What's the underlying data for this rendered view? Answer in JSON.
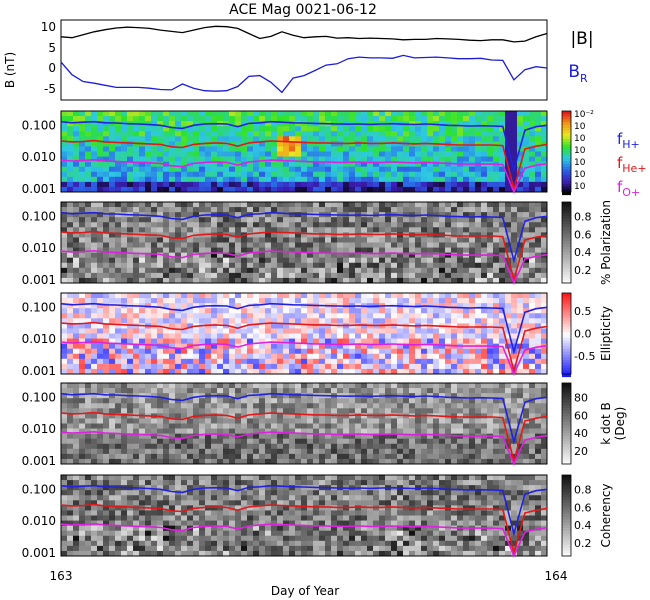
{
  "chart_data": [
    {
      "type": "line",
      "title": "ACE Mag 0021-06-12",
      "ylabel": "B (nT)",
      "ylim": [
        -8,
        11
      ],
      "yticks": [
        "10",
        "5",
        "0",
        "-5"
      ],
      "series": [
        {
          "name": "|B|",
          "color": "#000000",
          "values": [
            7.0,
            6.8,
            7.5,
            8.2,
            8.7,
            9.1,
            9.3,
            9.2,
            9.0,
            8.6,
            8.3,
            8.0,
            8.6,
            9.2,
            9.5,
            9.4,
            9.0,
            7.8,
            6.6,
            7.1,
            8.2,
            7.4,
            6.8,
            7.0,
            7.1,
            6.7,
            6.8,
            6.6,
            6.7,
            6.6,
            6.5,
            6.3,
            6.4,
            6.4,
            6.6,
            6.5,
            6.4,
            6.2,
            6.1,
            6.3,
            6.3,
            5.8,
            6.0,
            7.0,
            7.8
          ]
        },
        {
          "name": "B",
          "name_sub": "R",
          "color": "#1c1cd9",
          "values": [
            1.0,
            -2.0,
            -3.6,
            -4.0,
            -4.5,
            -5.0,
            -5.0,
            -5.0,
            -5.2,
            -5.5,
            -5.6,
            -4.2,
            -5.2,
            -5.8,
            -5.9,
            -5.8,
            -4.8,
            -2.4,
            -2.2,
            -3.8,
            -6.2,
            -2.8,
            -2.2,
            -1.0,
            0.3,
            0.6,
            1.8,
            2.2,
            2.0,
            2.0,
            1.9,
            2.6,
            2.0,
            2.1,
            2.2,
            2.0,
            1.8,
            1.8,
            1.9,
            1.5,
            1.4,
            -3.2,
            -0.8,
            -0.1,
            -0.4
          ]
        }
      ]
    },
    {
      "type": "heatmap",
      "panel": "power",
      "yticks": [
        "0.100",
        "0.010",
        "0.001"
      ],
      "colorbar_labels": [
        "10⁻²",
        "10",
        "10",
        "10",
        "10",
        "10",
        "10"
      ],
      "colorbar_colors": [
        "#f7f711",
        "#f29a18",
        "#2ce22c",
        "#2dc9e3",
        "#2a63e6",
        "#3b1fb6",
        "#000000"
      ],
      "legend": [
        {
          "name": "f",
          "sub": "H+",
          "color": "#2222dd"
        },
        {
          "name": "f",
          "sub": "He+",
          "color": "#e01919"
        },
        {
          "name": "f",
          "sub": "O+",
          "color": "#dd22dd"
        }
      ]
    },
    {
      "type": "heatmap",
      "panel": "polarization",
      "yticks": [
        "0.100",
        "0.010",
        "0.001"
      ],
      "colorbar_label": "% Polarization",
      "colorbar_ticks": [
        "0.8",
        "0.6",
        "0.4",
        "0.2"
      ],
      "colorbar_colors": [
        "#111111",
        "#ffffff"
      ]
    },
    {
      "type": "heatmap",
      "panel": "ellipticity",
      "yticks": [
        "0.100",
        "0.010",
        "0.001"
      ],
      "colorbar_label": "Ellipticity",
      "colorbar_ticks": [
        "0.5",
        "0.0",
        "-0.5"
      ],
      "colorbar_colors": [
        "#ff1a1a",
        "#ffffff",
        "#1a1aff"
      ]
    },
    {
      "type": "heatmap",
      "panel": "kdotb",
      "yticks": [
        "0.100",
        "0.010",
        "0.001"
      ],
      "colorbar_label": "k dot B",
      "colorbar_label2": "(Deg)",
      "colorbar_ticks": [
        "80",
        "60",
        "40",
        "20"
      ],
      "colorbar_colors": [
        "#111111",
        "#ffffff"
      ]
    },
    {
      "type": "heatmap",
      "panel": "coherency",
      "yticks": [
        "0.100",
        "0.010",
        "0.001"
      ],
      "colorbar_label": "Coherency",
      "colorbar_ticks": [
        "0.8",
        "0.6",
        "0.4",
        "0.2"
      ],
      "colorbar_colors": [
        "#111111",
        "#ffffff"
      ]
    }
  ],
  "xaxis": {
    "label": "Day of Year",
    "start": "163",
    "end": "164",
    "range": [
      163,
      164
    ]
  },
  "gyro_lines": {
    "H+": [
      0.13,
      0.12,
      0.125,
      0.13,
      0.12,
      0.118,
      0.112,
      0.11,
      0.105,
      0.1,
      0.085,
      0.08,
      0.1,
      0.11,
      0.112,
      0.11,
      0.09,
      0.115,
      0.12,
      0.13,
      0.125,
      0.12,
      0.118,
      0.115,
      0.112,
      0.11,
      0.108,
      0.11,
      0.107,
      0.11,
      0.112,
      0.108,
      0.105,
      0.11,
      0.106,
      0.1,
      0.098,
      0.095,
      0.097,
      0.095,
      0.092,
      0.004,
      0.07,
      0.09,
      0.1
    ],
    "He+": [
      0.032,
      0.03,
      0.031,
      0.033,
      0.03,
      0.029,
      0.028,
      0.027,
      0.026,
      0.025,
      0.021,
      0.02,
      0.025,
      0.027,
      0.028,
      0.027,
      0.022,
      0.028,
      0.03,
      0.032,
      0.031,
      0.03,
      0.029,
      0.028,
      0.028,
      0.027,
      0.027,
      0.028,
      0.027,
      0.027,
      0.028,
      0.027,
      0.026,
      0.027,
      0.026,
      0.025,
      0.024,
      0.024,
      0.024,
      0.024,
      0.023,
      0.001,
      0.018,
      0.022,
      0.025
    ],
    "O+": [
      0.008,
      0.0075,
      0.0078,
      0.0082,
      0.0075,
      0.0073,
      0.007,
      0.0068,
      0.0066,
      0.0063,
      0.0053,
      0.005,
      0.0063,
      0.0068,
      0.007,
      0.0068,
      0.0056,
      0.007,
      0.0075,
      0.008,
      0.0078,
      0.0075,
      0.0073,
      0.007,
      0.007,
      0.0068,
      0.0068,
      0.007,
      0.0067,
      0.0068,
      0.007,
      0.0068,
      0.0066,
      0.0068,
      0.0066,
      0.0063,
      0.0061,
      0.006,
      0.006,
      0.006,
      0.0058,
      0.0003,
      0.0045,
      0.0055,
      0.0062
    ]
  }
}
